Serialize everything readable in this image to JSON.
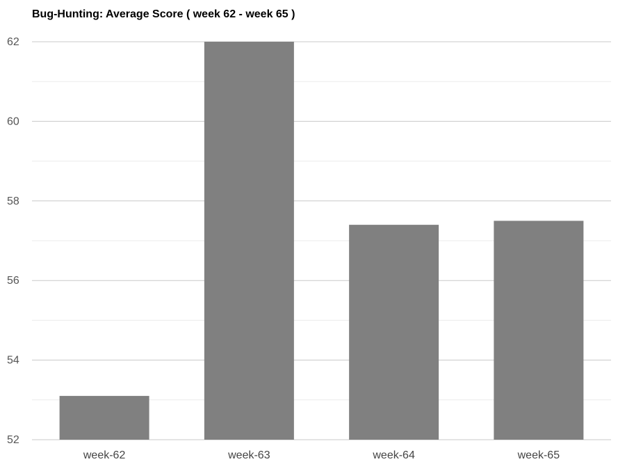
{
  "chart_data": {
    "type": "bar",
    "title": "Bug-Hunting: Average Score ( week 62 - week 65 )",
    "xlabel": "",
    "ylabel": "",
    "categories": [
      "week-62",
      "week-63",
      "week-64",
      "week-65"
    ],
    "values": [
      53.1,
      62.0,
      57.4,
      57.5
    ],
    "ylim": [
      52,
      62
    ],
    "yticks": [
      52,
      54,
      56,
      58,
      60,
      62
    ],
    "grid": true,
    "legend": "none",
    "colors": {
      "bar": "#808080",
      "major_grid": "#c8c8c8",
      "minor_grid": "#ebebeb"
    }
  }
}
